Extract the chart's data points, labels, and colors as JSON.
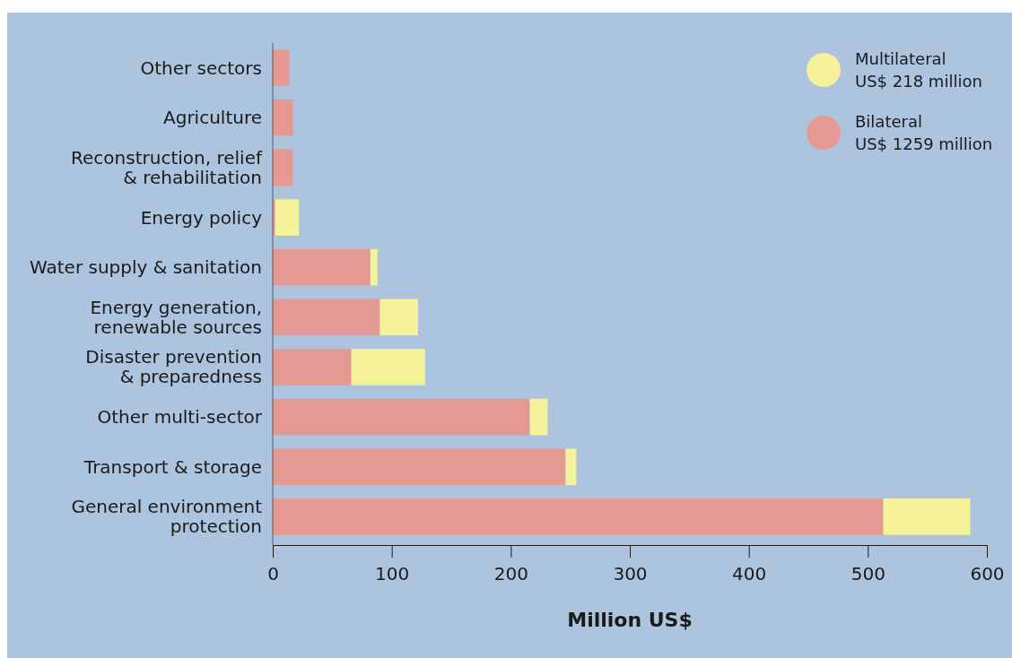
{
  "chart_data": {
    "type": "bar",
    "orientation": "horizontal",
    "stacked": true,
    "xlabel": "Million US$",
    "categories": [
      "Other sectors",
      "Agriculture",
      "Reconstruction, relief\n& rehabilitation",
      "Energy policy",
      "Water supply & sanitation",
      "Energy generation,\nrenewable sources",
      "Disaster prevention\n& preparedness",
      "Other multi-sector",
      "Transport & storage",
      "General environment\nprotection"
    ],
    "series": [
      {
        "name": "Bilateral\nUS$ 1259 million",
        "color": "#e49a93",
        "values": [
          14,
          17,
          17,
          2,
          82,
          90,
          66,
          216,
          246,
          513
        ]
      },
      {
        "name": "Multilateral\nUS$ 218 million",
        "color": "#f5f29a",
        "values": [
          null,
          null,
          null,
          20,
          6,
          32,
          62,
          15,
          9,
          73
        ]
      }
    ],
    "xlim": [
      0,
      600
    ],
    "xticks": [
      0,
      100,
      200,
      300,
      400,
      500,
      600
    ],
    "grid": false,
    "legend": "top right"
  }
}
